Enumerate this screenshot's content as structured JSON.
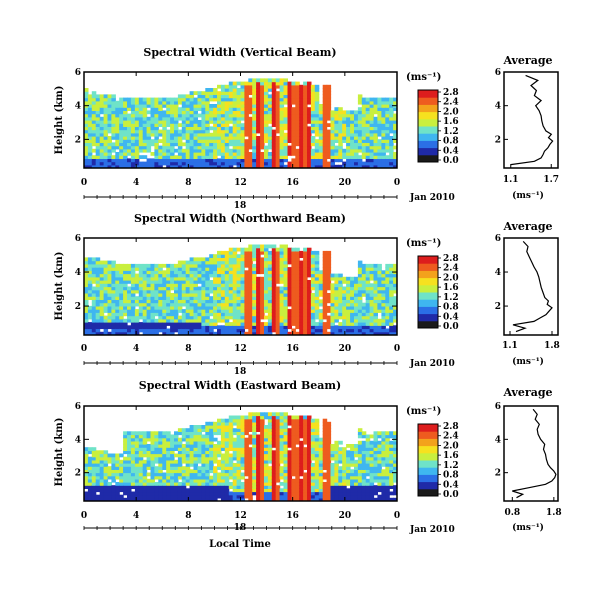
{
  "colors": {
    "scale": [
      "#1a1a1a",
      "#1f2aa8",
      "#2b6fe6",
      "#3fb6f0",
      "#6fe3c8",
      "#c9ef3e",
      "#f6e11f",
      "#f3a21c",
      "#ee5b1f",
      "#dd1d1d"
    ]
  },
  "figure": {
    "xlabel": "Local Time",
    "date_label": "Jan 2010",
    "colorbar_unit": "(ms⁻¹)",
    "avg_title": "Average",
    "avg_xunit": "(ms⁻¹)"
  },
  "chart_data": [
    {
      "type": "heatmap",
      "title": "Spectral Width (Vertical Beam)",
      "ylabel": "Height (km)",
      "x_ticks": [
        "0",
        "4",
        "8",
        "12",
        "16",
        "20",
        "0"
      ],
      "xlim": [
        0,
        24
      ],
      "day_label": "18",
      "y_ticks": [
        "6",
        "4",
        "2"
      ],
      "ylim": [
        0.3,
        6
      ],
      "colorbar_ticks": [
        "2.8",
        "2.4",
        "2.0",
        "1.6",
        "1.2",
        "0.8",
        "0.4",
        "0.0"
      ],
      "colorbar_range": [
        0,
        3
      ],
      "avg_xticks": [
        "1.1",
        "1.7"
      ],
      "avg_xlim": [
        1.0,
        1.8
      ],
      "avg_heights": [
        0.5,
        0.7,
        0.9,
        1.1,
        1.3,
        1.5,
        1.7,
        1.9,
        2.1,
        2.3,
        2.5,
        2.8,
        3.1,
        3.4,
        3.7,
        4.0,
        4.3,
        4.6,
        4.9,
        5.2,
        5.5,
        5.8
      ],
      "avg_values": [
        1.1,
        1.45,
        1.55,
        1.58,
        1.6,
        1.65,
        1.68,
        1.72,
        1.66,
        1.7,
        1.62,
        1.58,
        1.56,
        1.55,
        1.52,
        1.47,
        1.55,
        1.45,
        1.48,
        1.4,
        1.5,
        1.32
      ]
    },
    {
      "type": "heatmap",
      "title": "Spectral Width (Northward Beam)",
      "ylabel": "Height (km)",
      "x_ticks": [
        "0",
        "4",
        "8",
        "12",
        "16",
        "20",
        "0"
      ],
      "xlim": [
        0,
        24
      ],
      "day_label": "18",
      "y_ticks": [
        "6",
        "4",
        "2"
      ],
      "ylim": [
        0.3,
        6
      ],
      "colorbar_ticks": [
        "2.8",
        "2.4",
        "2.0",
        "1.6",
        "1.2",
        "0.8",
        "0.4",
        "0.0"
      ],
      "colorbar_range": [
        0,
        3
      ],
      "avg_xticks": [
        "1.1",
        "1.8"
      ],
      "avg_xlim": [
        1.0,
        1.9
      ],
      "avg_heights": [
        0.5,
        0.7,
        0.9,
        1.1,
        1.3,
        1.5,
        1.7,
        1.9,
        2.1,
        2.3,
        2.5,
        2.8,
        3.1,
        3.4,
        3.7,
        4.0,
        4.3,
        4.6,
        4.9,
        5.2,
        5.5,
        5.8
      ],
      "avg_values": [
        1.2,
        1.35,
        1.15,
        1.5,
        1.6,
        1.7,
        1.75,
        1.8,
        1.72,
        1.74,
        1.68,
        1.65,
        1.62,
        1.6,
        1.58,
        1.55,
        1.5,
        1.46,
        1.42,
        1.38,
        1.4,
        1.32
      ]
    },
    {
      "type": "heatmap",
      "title": "Spectral Width (Eastward Beam)",
      "ylabel": "Height (km)",
      "x_ticks": [
        "0",
        "4",
        "8",
        "12",
        "16",
        "20",
        "0"
      ],
      "xlim": [
        0,
        24
      ],
      "day_label": "18",
      "y_ticks": [
        "6",
        "4",
        "2"
      ],
      "ylim": [
        0.3,
        6
      ],
      "colorbar_ticks": [
        "2.8",
        "2.4",
        "2.0",
        "1.6",
        "1.2",
        "0.8",
        "0.4",
        "0.0"
      ],
      "colorbar_range": [
        0,
        3
      ],
      "avg_xticks": [
        "0.8",
        "1.8"
      ],
      "avg_xlim": [
        0.6,
        1.9
      ],
      "avg_heights": [
        0.5,
        0.7,
        0.9,
        1.1,
        1.3,
        1.5,
        1.7,
        1.9,
        2.1,
        2.3,
        2.5,
        2.8,
        3.1,
        3.4,
        3.7,
        4.0,
        4.3,
        4.6,
        4.9,
        5.2,
        5.5,
        5.8
      ],
      "avg_values": [
        0.9,
        1.05,
        0.8,
        1.2,
        1.6,
        1.75,
        1.82,
        1.85,
        1.8,
        1.72,
        1.66,
        1.62,
        1.6,
        1.55,
        1.58,
        1.48,
        1.42,
        1.4,
        1.45,
        1.35,
        1.4,
        1.3
      ]
    }
  ]
}
